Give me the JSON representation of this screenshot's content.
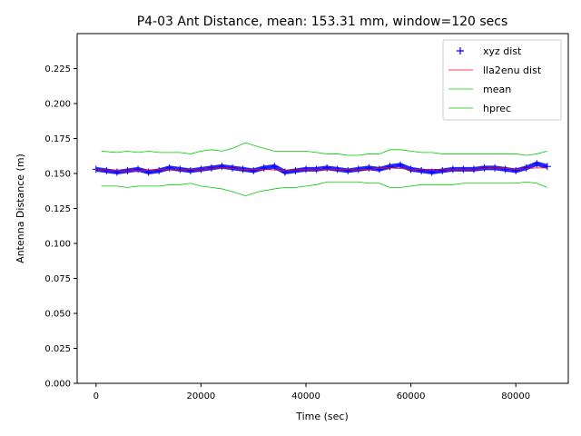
{
  "chart_data": {
    "type": "line",
    "title": "P4-03 Ant Distance, mean: 153.31 mm, window=120 secs",
    "xlabel": "Time (sec)",
    "ylabel": "Antenna Distance (m)",
    "xlim": [
      -3600,
      90000
    ],
    "ylim": [
      0.0,
      0.25
    ],
    "xticks": [
      0,
      20000,
      40000,
      60000,
      80000
    ],
    "xtick_labels": [
      "0",
      "20000",
      "40000",
      "60000",
      "80000"
    ],
    "yticks": [
      0.0,
      0.025,
      0.05,
      0.075,
      0.1,
      0.125,
      0.15,
      0.175,
      0.2,
      0.225
    ],
    "ytick_labels": [
      "0.000",
      "0.025",
      "0.050",
      "0.075",
      "0.100",
      "0.125",
      "0.150",
      "0.175",
      "0.200",
      "0.225"
    ],
    "grid": false,
    "legend_position": "top-right",
    "series": [
      {
        "name": "xyz dist",
        "style": "marker-plus",
        "color": "#0000ff",
        "x": [
          0,
          2000,
          4000,
          6000,
          8000,
          10000,
          12000,
          14000,
          16000,
          18000,
          20000,
          22000,
          24000,
          26000,
          28000,
          30000,
          32000,
          34000,
          36000,
          38000,
          40000,
          42000,
          44000,
          46000,
          48000,
          50000,
          52000,
          54000,
          56000,
          58000,
          60000,
          62000,
          64000,
          66000,
          68000,
          70000,
          72000,
          74000,
          76000,
          78000,
          80000,
          82000,
          84000,
          86000
        ],
        "y": [
          0.153,
          0.152,
          0.151,
          0.152,
          0.153,
          0.151,
          0.152,
          0.154,
          0.153,
          0.152,
          0.153,
          0.154,
          0.155,
          0.154,
          0.153,
          0.152,
          0.154,
          0.155,
          0.151,
          0.152,
          0.153,
          0.153,
          0.154,
          0.153,
          0.152,
          0.153,
          0.154,
          0.153,
          0.155,
          0.156,
          0.153,
          0.152,
          0.151,
          0.152,
          0.153,
          0.153,
          0.153,
          0.154,
          0.154,
          0.153,
          0.152,
          0.154,
          0.157,
          0.155
        ]
      },
      {
        "name": "lla2enu dist",
        "style": "line",
        "color": "#ff0000",
        "x": [
          0,
          4000,
          8000,
          12000,
          16000,
          20000,
          24000,
          28000,
          32000,
          36000,
          40000,
          44000,
          48000,
          52000,
          56000,
          60000,
          64000,
          68000,
          72000,
          76000,
          80000,
          84000,
          86000
        ],
        "y": [
          0.153,
          0.152,
          0.152,
          0.153,
          0.153,
          0.153,
          0.154,
          0.153,
          0.153,
          0.152,
          0.153,
          0.153,
          0.153,
          0.153,
          0.154,
          0.153,
          0.153,
          0.153,
          0.153,
          0.154,
          0.153,
          0.154,
          0.154
        ]
      },
      {
        "name": "mean",
        "style": "line",
        "color": "#00cc00",
        "x": [
          1000,
          4000,
          6000,
          8000,
          10000,
          12000,
          14000,
          16000,
          18000,
          20000,
          22000,
          24000,
          26000,
          28500,
          31000,
          34000,
          36000,
          38000,
          40000,
          42000,
          44000,
          46000,
          48000,
          50000,
          52000,
          54000,
          56000,
          58000,
          60000,
          62000,
          64000,
          66000,
          68000,
          70000,
          72000,
          74000,
          76000,
          78000,
          80000,
          82000,
          84000,
          86000
        ],
        "y": [
          0.166,
          0.165,
          0.166,
          0.165,
          0.166,
          0.165,
          0.165,
          0.165,
          0.164,
          0.166,
          0.167,
          0.166,
          0.168,
          0.172,
          0.169,
          0.166,
          0.166,
          0.166,
          0.166,
          0.165,
          0.164,
          0.164,
          0.163,
          0.163,
          0.164,
          0.164,
          0.167,
          0.167,
          0.166,
          0.165,
          0.165,
          0.164,
          0.164,
          0.164,
          0.164,
          0.164,
          0.164,
          0.164,
          0.164,
          0.163,
          0.164,
          0.166
        ]
      },
      {
        "name": "hprec",
        "style": "line",
        "color": "#00cc00",
        "x": [
          1000,
          4000,
          6000,
          8000,
          10000,
          12000,
          14000,
          16000,
          18000,
          20000,
          22000,
          24000,
          26000,
          28500,
          31000,
          34000,
          36000,
          38000,
          40000,
          42000,
          44000,
          46000,
          48000,
          50000,
          52000,
          54000,
          56000,
          58000,
          60000,
          62000,
          64000,
          66000,
          68000,
          70000,
          72000,
          74000,
          76000,
          78000,
          80000,
          82000,
          84000,
          86000
        ],
        "y": [
          0.141,
          0.141,
          0.14,
          0.141,
          0.141,
          0.141,
          0.142,
          0.142,
          0.143,
          0.141,
          0.14,
          0.139,
          0.137,
          0.134,
          0.137,
          0.139,
          0.14,
          0.14,
          0.141,
          0.142,
          0.144,
          0.144,
          0.144,
          0.144,
          0.143,
          0.143,
          0.14,
          0.14,
          0.141,
          0.142,
          0.142,
          0.142,
          0.142,
          0.143,
          0.143,
          0.143,
          0.143,
          0.143,
          0.143,
          0.144,
          0.143,
          0.14
        ]
      }
    ]
  }
}
